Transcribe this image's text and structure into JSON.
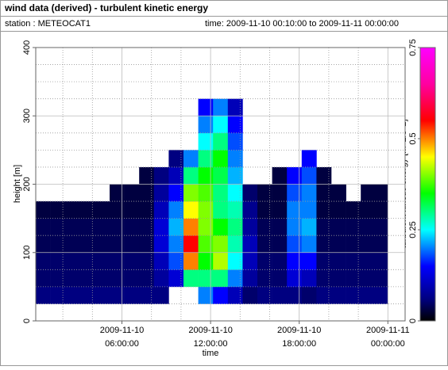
{
  "chart_data": {
    "type": "heatmap",
    "title": "wind data (derived) - turbulent kinetic energy",
    "station": "station : METEOCAT1",
    "time_range": "time: 2009-11-10 00:10:00 to 2009-11-11 00:00:00",
    "xlabel": "time",
    "ylabel": "height [m]",
    "colorbar_label": "turbulent kinetic energy [m^2/s^2]",
    "xlim": [
      "2009-11-10 00:10:00",
      "2009-11-11 01:10:00"
    ],
    "xticks": [
      "2009-11-10 06:00:00",
      "2009-11-10 12:00:00",
      "2009-11-10 18:00:00",
      "2009-11-11 00:00:00"
    ],
    "xminorticks": [
      "2009-11-10 02:00:00",
      "2009-11-10 04:00:00",
      "2009-11-10 08:00:00",
      "2009-11-10 10:00:00",
      "2009-11-10 14:00:00",
      "2009-11-10 16:00:00",
      "2009-11-10 20:00:00",
      "2009-11-10 22:00:00"
    ],
    "ylim": [
      0,
      400
    ],
    "yticks": [
      0,
      100,
      200,
      300,
      400
    ],
    "yminorticks": [
      25,
      50,
      75,
      125,
      150,
      175,
      225,
      250,
      275,
      325,
      350,
      375
    ],
    "grid": true,
    "clim": [
      0,
      0.75
    ],
    "cticks": [
      0,
      0.25,
      0.5,
      0.75
    ],
    "colorscale": [
      {
        "value": 0,
        "color": "#000000"
      },
      {
        "value": 0.06,
        "color": "#000080"
      },
      {
        "value": 0.15,
        "color": "#0000ff"
      },
      {
        "value": 0.25,
        "color": "#00ffff"
      },
      {
        "value": 0.35,
        "color": "#00ff00"
      },
      {
        "value": 0.45,
        "color": "#ffff00"
      },
      {
        "value": 0.55,
        "color": "#ff0000"
      },
      {
        "value": 0.65,
        "color": "#ff00a0"
      },
      {
        "value": 0.75,
        "color": "#ff00ff"
      }
    ],
    "x": [
      "2009-11-10 00:10:00",
      "2009-11-10 01:10:00",
      "2009-11-10 02:10:00",
      "2009-11-10 03:10:00",
      "2009-11-10 04:10:00",
      "2009-11-10 05:10:00",
      "2009-11-10 06:10:00",
      "2009-11-10 07:10:00",
      "2009-11-10 08:10:00",
      "2009-11-10 09:10:00",
      "2009-11-10 10:10:00",
      "2009-11-10 11:10:00",
      "2009-11-10 12:10:00",
      "2009-11-10 13:10:00",
      "2009-11-10 14:10:00",
      "2009-11-10 15:10:00",
      "2009-11-10 16:10:00",
      "2009-11-10 17:10:00",
      "2009-11-10 18:10:00",
      "2009-11-10 19:10:00",
      "2009-11-10 20:10:00",
      "2009-11-10 21:10:00",
      "2009-11-10 22:10:00",
      "2009-11-10 23:10:00",
      "2009-11-11 00:00:00"
    ],
    "y": [
      25,
      50,
      75,
      100,
      125,
      150,
      175,
      200,
      225,
      250,
      275,
      300,
      325
    ],
    "values": [
      [
        0.06,
        0.06,
        0.06,
        0.06,
        0.06,
        0.06,
        0.06,
        0.06,
        0.06,
        null,
        null,
        0.2,
        0.15,
        0.1,
        0.05,
        0.06,
        0.06,
        0.06,
        0.05,
        0.06,
        0.06,
        0.06,
        0.06,
        0.06
      ],
      [
        0.05,
        0.05,
        0.05,
        0.05,
        0.05,
        0.05,
        0.05,
        0.05,
        0.08,
        0.12,
        0.3,
        0.3,
        0.3,
        0.2,
        0.08,
        0.05,
        0.05,
        0.12,
        0.1,
        0.05,
        0.05,
        0.05,
        0.05,
        0.05
      ],
      [
        0.05,
        0.05,
        0.05,
        0.05,
        0.05,
        0.05,
        0.05,
        0.05,
        0.1,
        0.18,
        0.5,
        0.35,
        0.42,
        0.25,
        0.1,
        0.05,
        0.05,
        0.15,
        0.15,
        0.05,
        0.05,
        0.05,
        0.05,
        0.05
      ],
      [
        0.04,
        0.04,
        0.04,
        0.04,
        0.04,
        0.04,
        0.04,
        0.04,
        0.12,
        0.2,
        0.55,
        0.38,
        0.4,
        0.28,
        0.1,
        0.04,
        0.04,
        0.18,
        0.2,
        0.04,
        0.04,
        0.04,
        0.04,
        0.04
      ],
      [
        0.04,
        0.04,
        0.04,
        0.04,
        0.04,
        0.04,
        0.04,
        0.04,
        0.12,
        0.22,
        0.5,
        0.4,
        0.35,
        0.3,
        0.08,
        0.04,
        0.04,
        0.2,
        0.22,
        0.04,
        0.04,
        0.04,
        0.04,
        0.04
      ],
      [
        0.03,
        0.03,
        0.03,
        0.03,
        0.03,
        0.03,
        0.03,
        0.03,
        0.1,
        0.2,
        0.45,
        0.4,
        0.3,
        0.28,
        0.07,
        0.03,
        0.03,
        0.2,
        0.2,
        0.03,
        0.03,
        0.03,
        0.03,
        0.03
      ],
      [
        null,
        null,
        null,
        null,
        null,
        0.03,
        0.03,
        0.03,
        0.08,
        0.15,
        0.4,
        0.38,
        0.3,
        0.25,
        0.05,
        0.03,
        0.03,
        0.18,
        0.2,
        0.03,
        0.03,
        null,
        0.03,
        0.03
      ],
      [
        null,
        null,
        null,
        null,
        null,
        null,
        null,
        0.03,
        0.06,
        0.1,
        0.3,
        0.35,
        0.32,
        0.22,
        null,
        null,
        0.03,
        0.15,
        0.18,
        0.03,
        null,
        null,
        null,
        null
      ],
      [
        null,
        null,
        null,
        null,
        null,
        null,
        null,
        null,
        null,
        0.06,
        0.2,
        0.3,
        0.35,
        0.2,
        null,
        null,
        null,
        null,
        0.15,
        null,
        null,
        null,
        null,
        null
      ],
      [
        null,
        null,
        null,
        null,
        null,
        null,
        null,
        null,
        null,
        null,
        null,
        0.25,
        0.3,
        0.18,
        null,
        null,
        null,
        null,
        null,
        null,
        null,
        null,
        null,
        null
      ],
      [
        null,
        null,
        null,
        null,
        null,
        null,
        null,
        null,
        null,
        null,
        null,
        0.2,
        0.25,
        0.15,
        null,
        null,
        null,
        null,
        null,
        null,
        null,
        null,
        null,
        null
      ],
      [
        null,
        null,
        null,
        null,
        null,
        null,
        null,
        null,
        null,
        null,
        null,
        0.15,
        0.2,
        0.1,
        null,
        null,
        null,
        null,
        null,
        null,
        null,
        null,
        null,
        null
      ]
    ]
  }
}
